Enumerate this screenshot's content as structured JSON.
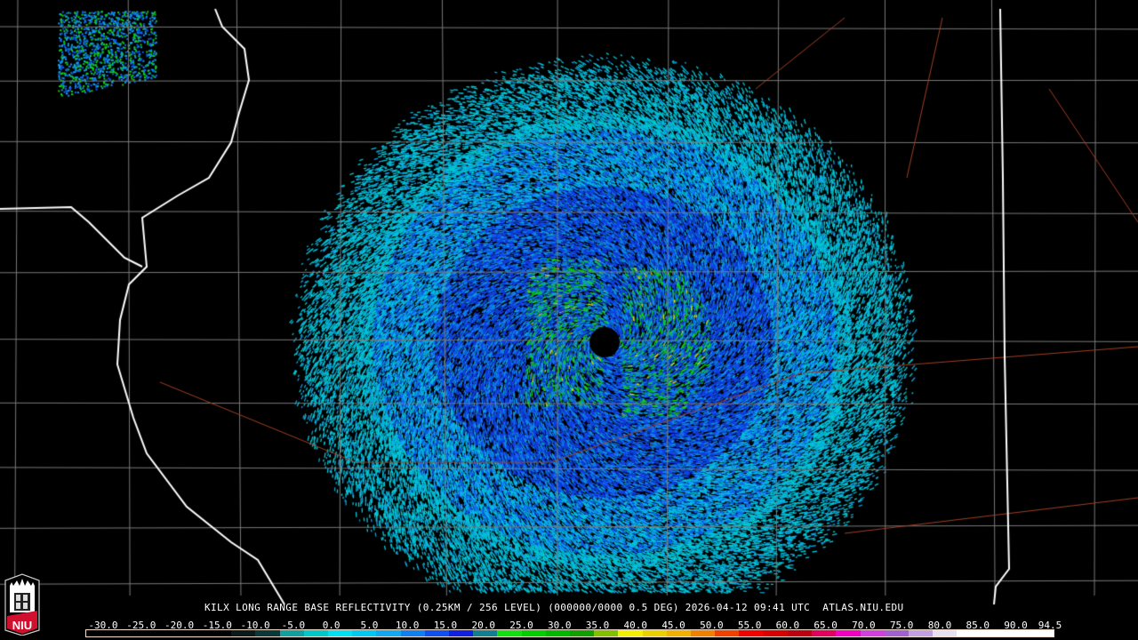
{
  "header": {
    "title": "KILX LONG RANGE BASE REFLECTIVITY (0.25KM / 256 LEVEL) (000000/0000 0.5 DEG) 2026-04-12 09:41 UTC  ATLAS.NIU.EDU"
  },
  "logo": {
    "text": "NIU",
    "colors": {
      "red": "#d0102e",
      "white": "#ffffff"
    }
  },
  "legend": {
    "unit_labels": [
      "-30.0",
      "-25.0",
      "-20.0",
      "-15.0",
      "-10.0",
      "-5.0",
      "0.0",
      "5.0",
      "10.0",
      "15.0",
      "20.0",
      "25.0",
      "30.0",
      "35.0",
      "40.0",
      "45.0",
      "50.0",
      "55.0",
      "60.0",
      "65.0",
      "70.0",
      "75.0",
      "80.0",
      "85.0",
      "90.0",
      "94.5"
    ],
    "range": [
      -30,
      94.5
    ],
    "colors": [
      "#000000",
      "#000000",
      "#000000",
      "#000000",
      "#000000",
      "#000000",
      "#0a1a1a",
      "#0a3838",
      "#10a0a0",
      "#00c8c8",
      "#00e0f0",
      "#00c8f0",
      "#10a8f0",
      "#1080f0",
      "#1050f0",
      "#1020e0",
      "#108090",
      "#10e010",
      "#00d000",
      "#00b800",
      "#10a000",
      "#80c000",
      "#f0f000",
      "#e8d000",
      "#f0b000",
      "#f08000",
      "#f04000",
      "#f00000",
      "#d80000",
      "#c00010",
      "#e00060",
      "#f000c0",
      "#d040e0",
      "#a060d0",
      "#c0a0e0",
      "#e8e0f0",
      "#ffffff",
      "#ffffff",
      "#ffffff",
      "#ffffff"
    ]
  },
  "radar": {
    "site": "KILX"
  }
}
